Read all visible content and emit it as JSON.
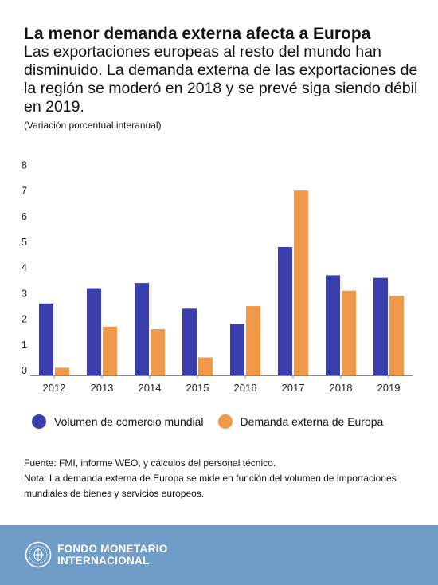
{
  "title": "La menor demanda externa afecta a Europa",
  "subtitle": "Las exportaciones europeas al resto del mundo han disminuido. La demanda externa de las exportaciones de la región se moderó en 2018 y se prevé siga siendo débil en 2019.",
  "unit_note": "(Variación porcentual interanual)",
  "colors": {
    "series1": "#3b3fad",
    "series2": "#f0994a",
    "footer": "#6f9dc7"
  },
  "chart_data": {
    "type": "bar",
    "categories": [
      "2012",
      "2013",
      "2014",
      "2015",
      "2016",
      "2017",
      "2018",
      "2019"
    ],
    "series": [
      {
        "name": "Volumen de comercio mundial",
        "values": [
          2.8,
          3.4,
          3.6,
          2.6,
          2.0,
          5.0,
          3.9,
          3.8
        ]
      },
      {
        "name": "Demanda externa de Europa",
        "values": [
          0.3,
          1.9,
          1.8,
          0.7,
          2.7,
          7.2,
          3.3,
          3.1
        ]
      }
    ],
    "yticks": [
      "0",
      "1",
      "2",
      "3",
      "4",
      "5",
      "6",
      "7",
      "8"
    ],
    "ylim": [
      0,
      8
    ],
    "grid": false,
    "legend_position": "bottom"
  },
  "source": "Fuente: FMI, informe WEO, y cálculos del personal técnico.",
  "note": "Nota: La demanda externa de Europa se mide en función del volumen de importaciones mundiales de bienes y servicios europeos.",
  "footer": {
    "org_line1": "FONDO MONETARIO",
    "org_line2": "INTERNACIONAL",
    "logo_icon": "imf-seal-icon"
  }
}
